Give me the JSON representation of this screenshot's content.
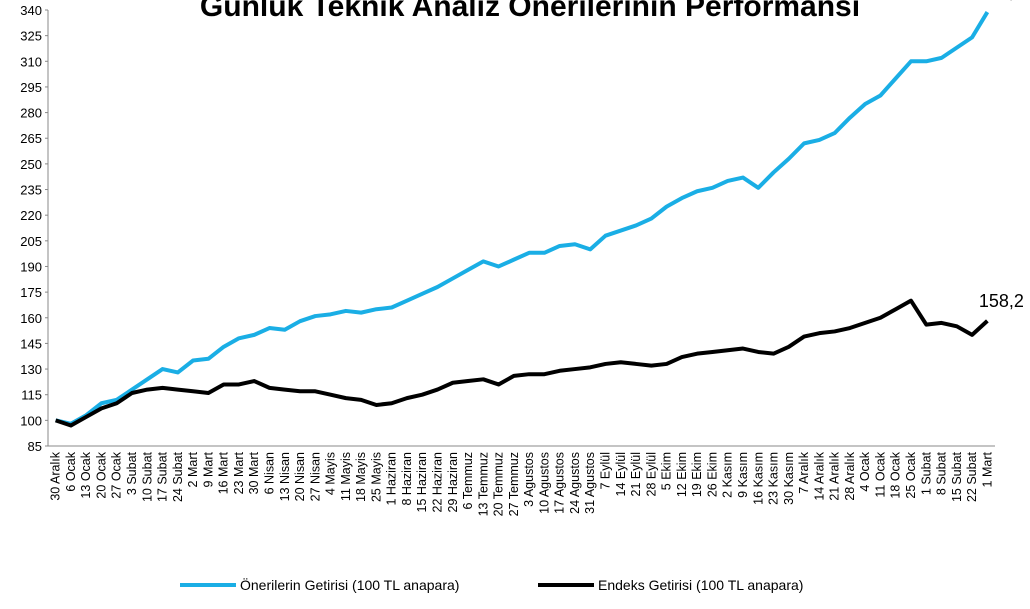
{
  "chart_data": {
    "type": "line",
    "title": "Günlük Teknik Analiz Önerilerinin Performansı",
    "categories": [
      "30 Aralık",
      "6 Ocak",
      "13 Ocak",
      "20 Ocak",
      "27 Ocak",
      "3 Subat",
      "10 Subat",
      "17 Subat",
      "24 Subat",
      "2 Mart",
      "9 Mart",
      "16 Mart",
      "23 Mart",
      "30 Mart",
      "6 Nisan",
      "13 Nisan",
      "20 Nisan",
      "27 Nisan",
      "4 Mayis",
      "11 Mayis",
      "18 Mayis",
      "25 Mayis",
      "1 Haziran",
      "8 Haziran",
      "15 Haziran",
      "22 Haziran",
      "29 Haziran",
      "6 Temmuz",
      "13 Temmuz",
      "20 Temmuz",
      "27 Temmuz",
      "3 Agustos",
      "10 Agustos",
      "17 Agustos",
      "24 Agustos",
      "31 Agustos",
      "7 Eylül",
      "14 Eylül",
      "21 Eylül",
      "28 Eylül",
      "5 Ekim",
      "12 Ekim",
      "19 Ekim",
      "26 Ekim",
      "2 Kasım",
      "9 Kasım",
      "16 Kasım",
      "23 Kasım",
      "30 Kasım",
      "7 Aralık",
      "14 Aralık",
      "21 Aralık",
      "28 Aralık",
      "4 Ocak",
      "11 Ocak",
      "18 Ocak",
      "25 Ocak",
      "1 Subat",
      "8 Subat",
      "15 Subat",
      "22 Subat",
      "1 Mart"
    ],
    "series": [
      {
        "name": "Önerilerin Getirisi (100 TL anapara)",
        "color": "#1aaee5",
        "values": [
          100,
          98,
          103,
          110,
          112,
          118,
          124,
          130,
          128,
          135,
          136,
          143,
          148,
          150,
          154,
          153,
          158,
          161,
          162,
          164,
          163,
          165,
          166,
          170,
          174,
          178,
          183,
          188,
          193,
          190,
          194,
          198,
          198,
          202,
          203,
          200,
          208,
          211,
          214,
          218,
          225,
          230,
          234,
          236,
          240,
          242,
          236,
          245,
          253,
          262,
          264,
          268,
          277,
          285,
          290,
          300,
          310,
          310,
          312,
          318,
          324,
          338.8
        ],
        "value_labels": [
          null,
          null,
          null,
          null,
          null,
          null,
          null,
          null,
          null,
          null,
          null,
          null,
          null,
          null,
          null,
          null,
          null,
          null,
          null,
          null,
          null,
          null,
          null,
          null,
          null,
          null,
          null,
          null,
          null,
          null,
          null,
          null,
          null,
          null,
          null,
          null,
          null,
          null,
          null,
          null,
          null,
          null,
          null,
          null,
          null,
          null,
          null,
          null,
          null,
          null,
          null,
          null,
          null,
          null,
          null,
          null,
          null,
          null,
          null,
          null,
          null,
          "338,8"
        ]
      },
      {
        "name": "Endeks Getirisi (100 TL anapara)",
        "color": "#000000",
        "values": [
          100,
          97,
          102,
          107,
          110,
          116,
          118,
          119,
          118,
          117,
          116,
          121,
          121,
          123,
          119,
          118,
          117,
          117,
          115,
          113,
          112,
          109,
          110,
          113,
          115,
          118,
          122,
          123,
          124,
          121,
          126,
          127,
          127,
          129,
          130,
          131,
          133,
          134,
          133,
          132,
          133,
          137,
          139,
          140,
          141,
          142,
          140,
          139,
          143,
          149,
          151,
          152,
          154,
          157,
          160,
          165,
          170,
          156,
          157,
          155,
          150,
          158.2
        ],
        "value_labels": [
          null,
          null,
          null,
          null,
          null,
          null,
          null,
          null,
          null,
          null,
          null,
          null,
          null,
          null,
          null,
          null,
          null,
          null,
          null,
          null,
          null,
          null,
          null,
          null,
          null,
          null,
          null,
          null,
          null,
          null,
          null,
          null,
          null,
          null,
          null,
          null,
          null,
          null,
          null,
          null,
          null,
          null,
          null,
          null,
          null,
          null,
          null,
          null,
          null,
          null,
          null,
          null,
          null,
          null,
          null,
          null,
          null,
          null,
          null,
          null,
          null,
          "158,2"
        ]
      }
    ],
    "ylim": [
      85,
      340
    ],
    "yticks": [
      85,
      100,
      115,
      130,
      145,
      160,
      175,
      190,
      205,
      220,
      235,
      250,
      265,
      280,
      295,
      310,
      325,
      340
    ],
    "grid": false,
    "legend": "bottom"
  }
}
